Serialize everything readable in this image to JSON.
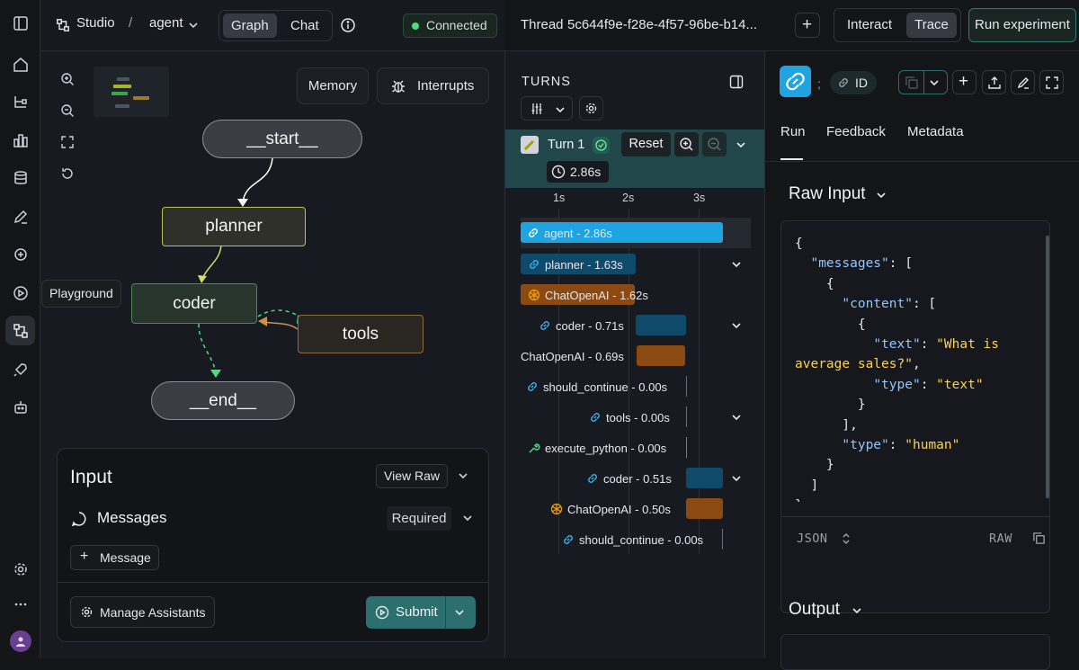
{
  "rail": {
    "tooltip": "Playground"
  },
  "topbar": {
    "studio": "Studio",
    "sep": "/",
    "agent": "agent",
    "view_graph": "Graph",
    "view_chat": "Chat",
    "status": "Connected"
  },
  "graph": {
    "memory_label": "Memory",
    "interrupts_label": "Interrupts",
    "nodes": {
      "start": "__start__",
      "planner": "planner",
      "coder": "coder",
      "tools": "tools",
      "end": "__end__"
    }
  },
  "input": {
    "title": "Input",
    "view_raw": "View Raw",
    "messages_label": "Messages",
    "required": "Required",
    "add_message": "Message",
    "manage": "Manage Assistants",
    "submit": "Submit"
  },
  "thread": {
    "label": "Thread",
    "id": "5c644f9e-f28e-4f57-96be-b14...",
    "interact": "Interact",
    "trace": "Trace",
    "run_experiment": "Run experiment"
  },
  "turns": {
    "heading": "TURNS",
    "turn_label": "Turn 1",
    "reset": "Reset",
    "duration": "2.86s",
    "ticks": [
      "1s",
      "2s",
      "3s"
    ],
    "rows": [
      {
        "label": "agent - 2.86s"
      },
      {
        "label": "planner - 1.63s"
      },
      {
        "label": "ChatOpenAI - 1.62s"
      },
      {
        "label": "coder - 0.71s"
      },
      {
        "label": "ChatOpenAI - 0.69s"
      },
      {
        "label": "should_continue - 0.00s"
      },
      {
        "label": "tools - 0.00s"
      },
      {
        "label": "execute_python - 0.00s"
      },
      {
        "label": "coder - 0.51s"
      },
      {
        "label": "ChatOpenAI - 0.50s"
      },
      {
        "label": "should_continue - 0.00s"
      }
    ]
  },
  "details": {
    "id_label": "ID",
    "tabs": [
      "Run",
      "Feedback",
      "Metadata"
    ],
    "raw_input_title": "Raw Input",
    "format": "JSON",
    "raw": "RAW",
    "output_title": "Output",
    "json_text": "{\n  \"messages\": [\n    {\n      \"content\": [\n        {\n          \"text\": \"What is average sales?\",\n          \"type\": \"text\"\n        }\n      ],\n      \"type\": \"human\"\n    }\n  ]\n}"
  },
  "colors": {
    "accent_blue": "#1ea4e0",
    "accent_teal": "#2b6f6f",
    "orange": "#8a4a12",
    "green": "#4ade80"
  }
}
